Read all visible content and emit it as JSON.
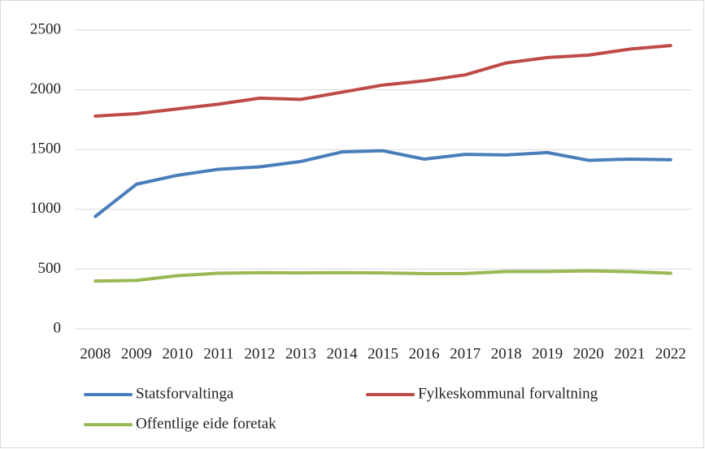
{
  "chart_data": {
    "type": "line",
    "categories": [
      "2008",
      "2009",
      "2010",
      "2011",
      "2012",
      "2013",
      "2014",
      "2015",
      "2016",
      "2017",
      "2018",
      "2019",
      "2020",
      "2021",
      "2022"
    ],
    "series": [
      {
        "name": "Statsforvaltinga",
        "color": "#4a7ebb",
        "values": [
          940,
          1210,
          1285,
          1335,
          1355,
          1400,
          1480,
          1490,
          1420,
          1460,
          1455,
          1475,
          1410,
          1420,
          1415
        ]
      },
      {
        "name": "Fylkeskommunal forvaltning",
        "color": "#be4b48",
        "values": [
          1780,
          1800,
          1840,
          1880,
          1930,
          1920,
          1980,
          2040,
          2075,
          2125,
          2225,
          2270,
          2290,
          2340,
          2370
        ]
      },
      {
        "name": "Offentlige eide foretak",
        "color": "#98b954",
        "values": [
          400,
          405,
          445,
          465,
          470,
          468,
          470,
          468,
          462,
          463,
          480,
          480,
          485,
          478,
          465
        ]
      }
    ],
    "ylim": [
      0,
      2500
    ],
    "yticks": [
      0,
      500,
      1000,
      1500,
      2000,
      2500
    ],
    "grid": true,
    "legend": "bottom"
  }
}
